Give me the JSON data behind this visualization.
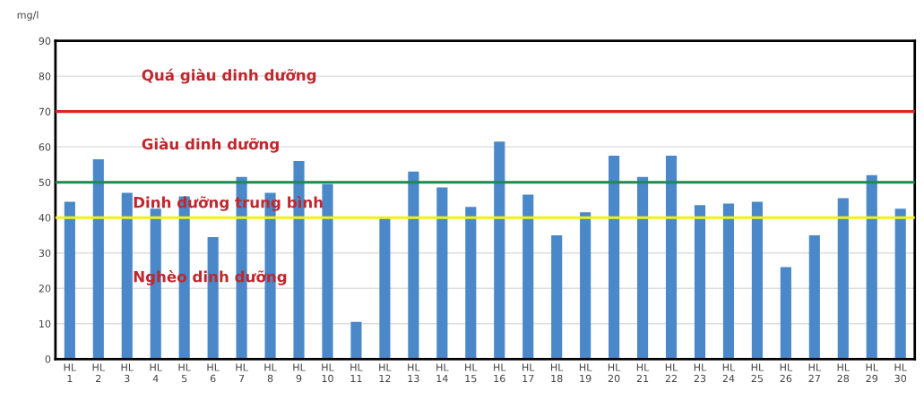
{
  "chart_data": {
    "type": "bar",
    "ylabel": "mg/l",
    "categories": [
      "HL\n1",
      "HL\n2",
      "HL\n3",
      "HL\n4",
      "HL\n5",
      "HL\n6",
      "HL\n7",
      "HL\n8",
      "HL\n9",
      "HL\n10",
      "HL\n11",
      "HL\n12",
      "HL\n13",
      "HL\n14",
      "HL\n15",
      "HL\n16",
      "HL\n17",
      "HL\n18",
      "HL\n19",
      "HL\n20",
      "HL\n21",
      "HL\n22",
      "HL\n23",
      "HL\n24",
      "HL\n25",
      "HL\n26",
      "HL\n27",
      "HL\n28",
      "HL\n29",
      "HL\n30"
    ],
    "values": [
      44.5,
      56.5,
      47,
      42.5,
      46,
      34.5,
      51.5,
      47,
      56,
      49.5,
      10.5,
      40,
      53,
      48.5,
      43,
      61.5,
      46.5,
      35,
      41.5,
      57.5,
      51.5,
      57.5,
      43.5,
      44,
      44.5,
      26,
      35,
      45.5,
      52,
      42.5
    ],
    "color": "#4a88c9",
    "ylim": [
      0,
      90
    ],
    "yticks": [
      0,
      10,
      20,
      30,
      40,
      50,
      60,
      70,
      80,
      90
    ],
    "grid": "y",
    "ref_lines": [
      {
        "axis": "y",
        "value": 70,
        "color": "#d62828"
      },
      {
        "axis": "y",
        "value": 50,
        "color": "#1e8a4e"
      },
      {
        "axis": "y",
        "value": 40,
        "color": "#f2f01a"
      }
    ],
    "annotations": [
      "Quá giàu dinh dưỡng",
      "Giàu dinh dưỡng",
      "Dinh dưỡng trung bình",
      "Nghèo dinh dưỡng"
    ]
  }
}
